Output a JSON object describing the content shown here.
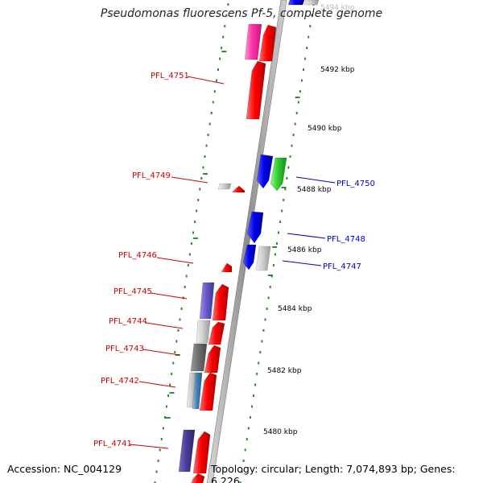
{
  "title": "Pseudomonas fluorescens Pf-5, complete genome",
  "footer": {
    "accession": "Accession: NC_004129",
    "summary": "Topology: circular; Length: 7,074,893 bp; Genes: 6,226"
  },
  "colors": {
    "forward_strand": "#ff0000",
    "reverse_strand": "#0000ee",
    "forward_label": "#cc0000",
    "reverse_label": "#0000cc",
    "backbone": "#9a9a9a",
    "tick_dots": "#2e8b2e"
  },
  "scale": {
    "unit": "kbp",
    "labels": [
      "5494 kbp",
      "5492 kbp",
      "5490 kbp",
      "5488 kbp",
      "5486 kbp",
      "5484 kbp",
      "5482 kbp",
      "5480 kbp"
    ]
  },
  "genes_forward_labels": [
    "PFL_4751",
    "PFL_4749",
    "PFL_4746",
    "PFL_4745",
    "PFL_4744",
    "PFL_4743",
    "PFL_4742",
    "PFL_4741"
  ],
  "genes_reverse_labels": [
    "PFL_4750",
    "PFL_4748",
    "PFL_4747"
  ]
}
